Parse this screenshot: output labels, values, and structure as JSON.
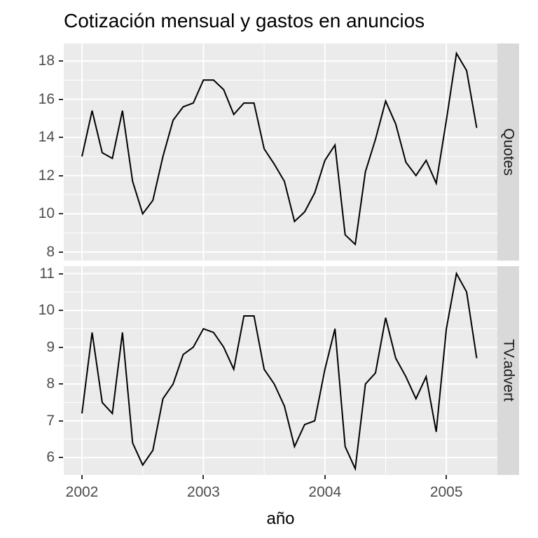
{
  "title": "Cotización mensual y gastos en anuncios",
  "x_axis": {
    "label": "año",
    "tick_labels": [
      "2002",
      "2003",
      "2004",
      "2005"
    ]
  },
  "colors": {
    "panel_background": "#EBEBEB",
    "strip_background": "#D9D9D9",
    "grid_line": "#FFFFFF",
    "axis_text": "#4D4D4D",
    "tick_mark": "#333333",
    "data_line": "#000000",
    "title_text": "#000000",
    "strip_text": "#1A1A1A"
  },
  "chart_data": {
    "type": "line",
    "title": "Cotización mensual y gastos en anuncios",
    "xlabel": "año",
    "ylabel": "",
    "grid": true,
    "legend": "none",
    "x_unit": "month",
    "x_tick_labels": [
      "2002",
      "2003",
      "2004",
      "2005"
    ],
    "x_tick_values": [
      2002,
      2003,
      2004,
      2005
    ],
    "xlim": [
      2001.85,
      2005.42
    ],
    "x_numeric_start": 2002,
    "x_numeric_step": 0.0833333,
    "months": [
      "2002-01",
      "2002-02",
      "2002-03",
      "2002-04",
      "2002-05",
      "2002-06",
      "2002-07",
      "2002-08",
      "2002-09",
      "2002-10",
      "2002-11",
      "2002-12",
      "2003-01",
      "2003-02",
      "2003-03",
      "2003-04",
      "2003-05",
      "2003-06",
      "2003-07",
      "2003-08",
      "2003-09",
      "2003-10",
      "2003-11",
      "2003-12",
      "2004-01",
      "2004-02",
      "2004-03",
      "2004-04",
      "2004-05",
      "2004-06",
      "2004-07",
      "2004-08",
      "2004-09",
      "2004-10",
      "2004-11",
      "2004-12",
      "2005-01",
      "2005-02",
      "2005-03",
      "2005-04"
    ],
    "facets": [
      {
        "label": "Quotes",
        "ylim": [
          7.55,
          18.92
        ],
        "y_ticks": [
          8,
          10,
          12,
          14,
          16,
          18
        ],
        "values": [
          13.0,
          15.4,
          13.2,
          12.9,
          15.4,
          11.7,
          10.0,
          10.7,
          13.0,
          14.9,
          15.6,
          15.8,
          17.0,
          17.0,
          16.5,
          15.2,
          15.8,
          15.8,
          13.4,
          12.6,
          11.7,
          9.6,
          10.1,
          11.1,
          12.8,
          13.6,
          8.9,
          8.4,
          12.2,
          13.9,
          15.9,
          14.7,
          12.7,
          12.0,
          12.8,
          11.6,
          14.9,
          18.4,
          17.5,
          14.5
        ]
      },
      {
        "label": "TV.advert",
        "ylim": [
          5.53,
          11.2
        ],
        "y_ticks": [
          6,
          7,
          8,
          9,
          10,
          11
        ],
        "values": [
          7.2,
          9.4,
          7.5,
          7.2,
          9.4,
          6.4,
          5.8,
          6.2,
          7.6,
          8.0,
          8.8,
          9.0,
          9.5,
          9.4,
          9.0,
          8.4,
          9.85,
          9.85,
          8.4,
          8.0,
          7.4,
          6.3,
          6.9,
          7.0,
          8.4,
          9.5,
          6.3,
          5.7,
          8.0,
          8.3,
          9.8,
          8.7,
          8.2,
          7.6,
          8.2,
          6.7,
          9.5,
          11.0,
          10.5,
          8.7
        ]
      }
    ]
  }
}
